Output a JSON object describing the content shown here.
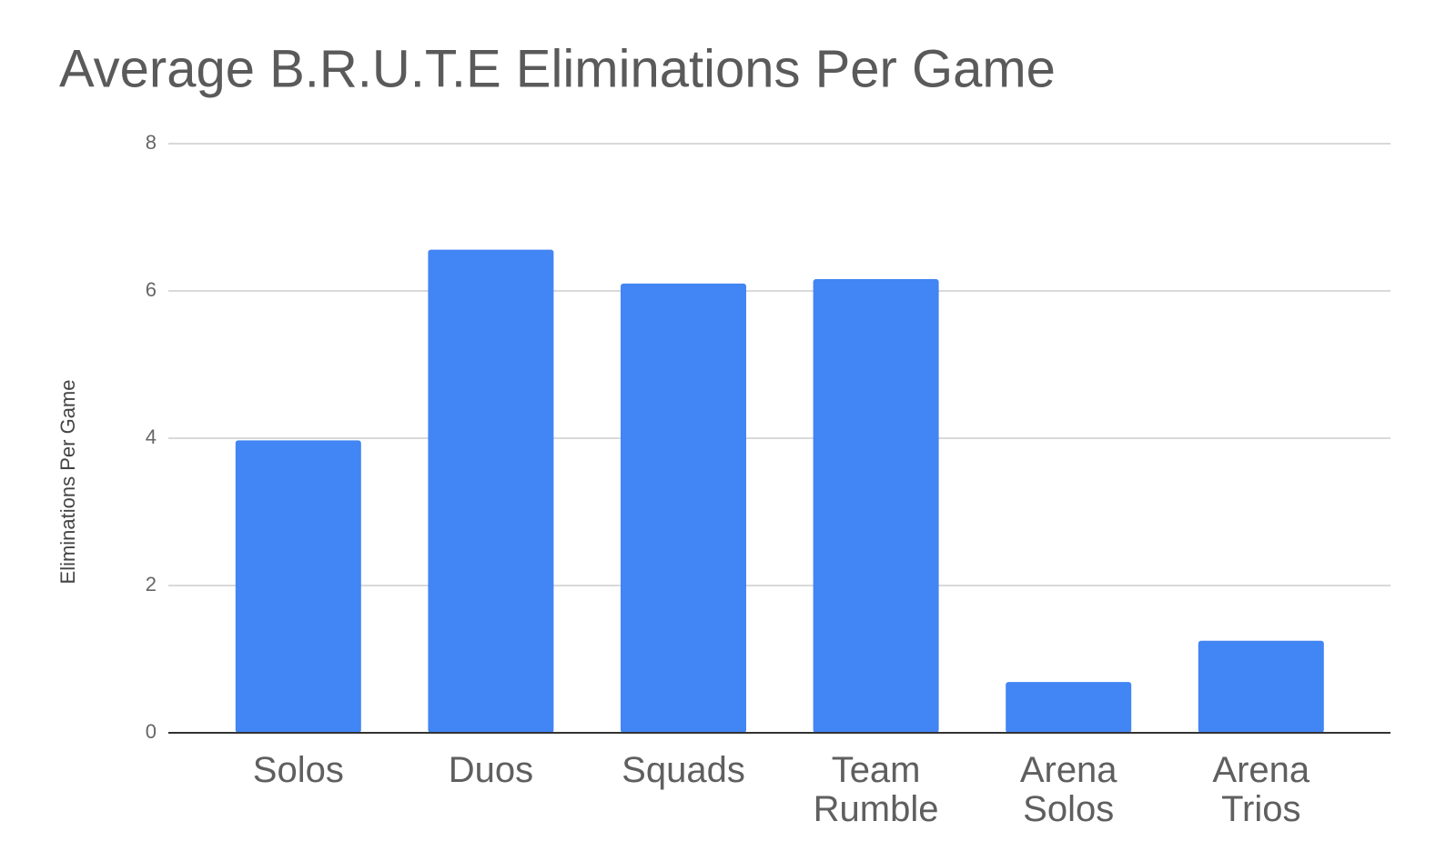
{
  "chart_data": {
    "type": "bar",
    "title": "Average B.R.U.T.E Eliminations Per Game",
    "y_label": "Eliminations Per Game",
    "categories": [
      "Solos",
      "Duos",
      "Squads",
      "Team Rumble",
      "Arena Solos",
      "Arena Trios"
    ],
    "values": [
      3.97,
      6.56,
      6.1,
      6.16,
      0.69,
      1.25
    ],
    "color": "#4285f4",
    "ylim": [
      0,
      8
    ],
    "yticks": [
      0,
      2,
      4,
      6,
      8
    ],
    "grid": true
  }
}
